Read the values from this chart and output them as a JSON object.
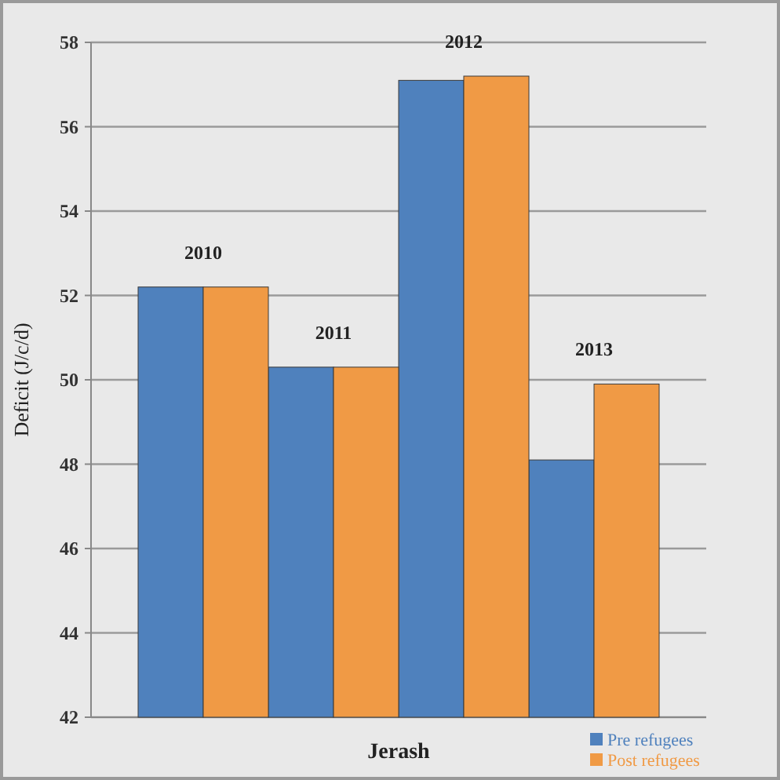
{
  "chart_data": {
    "type": "bar",
    "ylabel": "Deficit (J/c/d)",
    "xlabel": "Jerash",
    "categories": [
      "2010",
      "2011",
      "2012",
      "2013"
    ],
    "series": [
      {
        "name": "Pre refugees",
        "color": "#4f81bd",
        "values": [
          52.2,
          50.3,
          57.1,
          48.1
        ]
      },
      {
        "name": "Post refugees",
        "color": "#f09a45",
        "values": [
          52.2,
          50.3,
          57.2,
          49.9
        ]
      }
    ],
    "ylim": [
      42,
      58
    ],
    "yticks": [
      42,
      44,
      46,
      48,
      50,
      52,
      54,
      56,
      58
    ],
    "grid": "y",
    "legend": "bottom right"
  }
}
